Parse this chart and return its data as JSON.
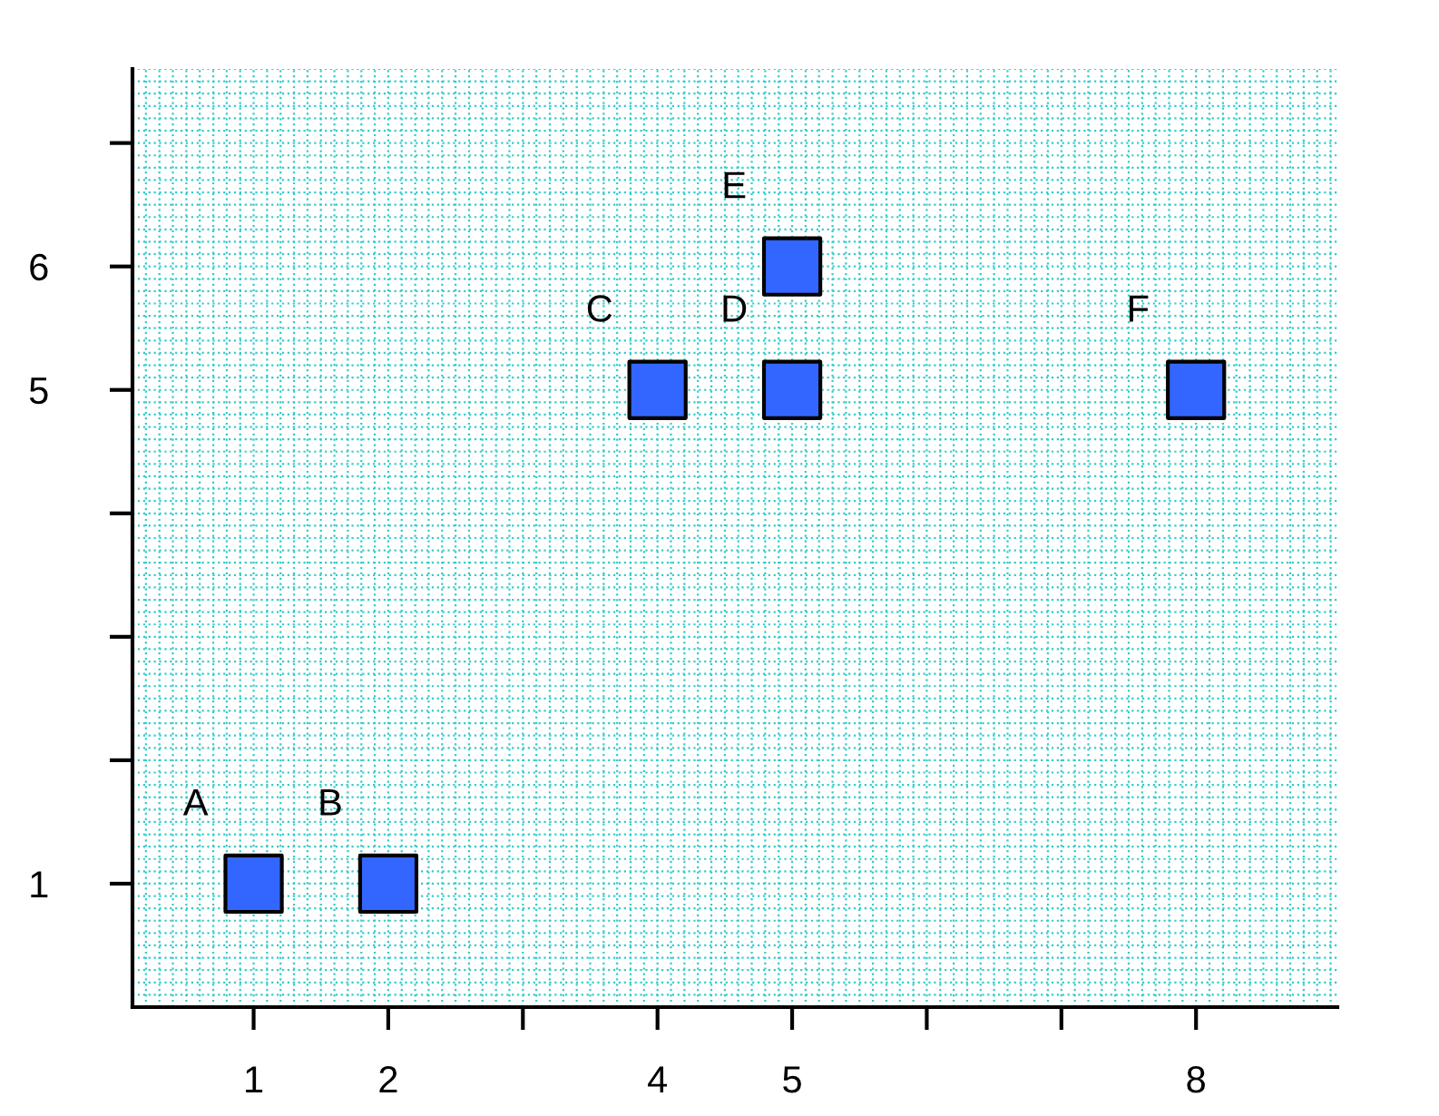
{
  "chart_data": {
    "type": "scatter",
    "x": [
      1,
      2,
      4,
      5,
      5,
      8
    ],
    "series": [
      {
        "color": "#3366ff",
        "values": [
          1,
          1,
          5,
          5,
          6,
          5
        ]
      }
    ],
    "marker": "square",
    "annotations": [
      {
        "text": "A",
        "x": 1,
        "y": 1
      },
      {
        "text": "B",
        "x": 2,
        "y": 1
      },
      {
        "text": "C",
        "x": 4,
        "y": 5
      },
      {
        "text": "D",
        "x": 5,
        "y": 5
      },
      {
        "text": "E",
        "x": 5,
        "y": 6
      },
      {
        "text": "F",
        "x": 8,
        "y": 5
      }
    ],
    "xlim": [
      0.1,
      9.05
    ],
    "ylim": [
      0,
      7.6
    ],
    "xticks": [
      1,
      2,
      {
        "value": 3,
        "label": null
      },
      4,
      5,
      {
        "value": 6,
        "label": null
      },
      {
        "value": 7,
        "label": null
      },
      8
    ],
    "yticks": [
      1,
      {
        "value": 2,
        "label": null
      },
      {
        "value": 3,
        "label": null
      },
      {
        "value": 4,
        "label": null
      },
      5,
      6,
      {
        "value": 7,
        "label": null
      }
    ],
    "grid": true
  }
}
